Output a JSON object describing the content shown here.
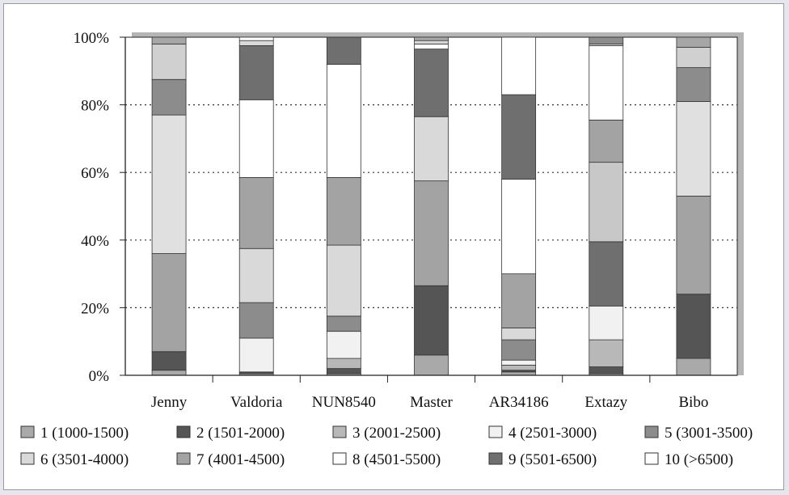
{
  "chart_data": {
    "type": "bar",
    "stacked": true,
    "normalized": true,
    "title": "",
    "xlabel": "",
    "ylabel": "",
    "ylim": [
      0,
      100
    ],
    "y_ticks": [
      "0%",
      "20%",
      "40%",
      "60%",
      "80%",
      "100%"
    ],
    "grid": "dotted horizontal lines at 20% intervals",
    "legend_position": "bottom",
    "categories": [
      "Jenny",
      "Valdoria",
      "NUN8540",
      "Master",
      "AR34186",
      "Extazy",
      "Bibo"
    ],
    "series": [
      {
        "name": "1 (1000-1500)",
        "color": "#a9a9a9",
        "values": [
          1.5,
          0.5,
          0.5,
          6,
          1,
          0.5,
          5
        ]
      },
      {
        "name": "2 (1501-2000)",
        "color": "#555555",
        "values": [
          5.5,
          0.5,
          1.5,
          20.5,
          0.5,
          2,
          19
        ]
      },
      {
        "name": "3 (2001-2500)",
        "color": "#b8b8b8",
        "values": [
          0,
          0,
          3,
          0,
          1.5,
          0,
          0
        ]
      },
      {
        "name": "4 (2501-3000)",
        "color": "#f1f1f1",
        "values": [
          0,
          10,
          8,
          0,
          1.5,
          8,
          0
        ]
      },
      {
        "name": "5 (3001-3500)",
        "color": "#8c8c8c",
        "values": [
          0,
          10.5,
          4.5,
          0,
          6,
          0,
          0
        ]
      },
      {
        "name": "6 (3501-4000)",
        "color": "#d9d9d9",
        "values": [
          0,
          16,
          21,
          0,
          3.5,
          10,
          0
        ]
      },
      {
        "name": "7 (4001-4500)",
        "color": "#a3a3a3",
        "values": [
          29,
          21,
          20,
          31,
          16,
          19,
          29
        ]
      },
      {
        "name": "8 (4501-5500)",
        "color": "#ffffff",
        "values": [
          0,
          0,
          0,
          0,
          28,
          0,
          0
        ]
      },
      {
        "name": "9 (5501-6500)",
        "color": "#6f6f6f",
        "values": [
          0,
          0,
          0,
          0,
          25,
          0,
          0
        ]
      },
      {
        "name": "10 (>6500)",
        "color": "#ffffff",
        "values": [
          0,
          0,
          0,
          0,
          0,
          0,
          0
        ]
      }
    ],
    "stacks": {
      "Jenny": [
        [
          1.5,
          "#a9a9a9"
        ],
        [
          5.5,
          "#555555"
        ],
        [
          29,
          "#a3a3a3"
        ],
        [
          41,
          "#e0e0e0"
        ],
        [
          10.5,
          "#8c8c8c"
        ],
        [
          10.5,
          "#d0d0d0"
        ],
        [
          2,
          "#a6a6a6"
        ]
      ],
      "Valdoria": [
        [
          0.5,
          "#a9a9a9"
        ],
        [
          0.5,
          "#555555"
        ],
        [
          10,
          "#f1f1f1"
        ],
        [
          10.5,
          "#8c8c8c"
        ],
        [
          16,
          "#d9d9d9"
        ],
        [
          21,
          "#a3a3a3"
        ],
        [
          23,
          "#ffffff"
        ],
        [
          16,
          "#6f6f6f"
        ],
        [
          1.5,
          "#d9d9d9"
        ],
        [
          1,
          "#ffffff"
        ]
      ],
      "NUN8540": [
        [
          0.5,
          "#a9a9a9"
        ],
        [
          1.5,
          "#555555"
        ],
        [
          3,
          "#b8b8b8"
        ],
        [
          8,
          "#f1f1f1"
        ],
        [
          4.5,
          "#8c8c8c"
        ],
        [
          21,
          "#d9d9d9"
        ],
        [
          20,
          "#a3a3a3"
        ],
        [
          33.5,
          "#ffffff"
        ],
        [
          8,
          "#6f6f6f"
        ]
      ],
      "Master": [
        [
          6,
          "#a9a9a9"
        ],
        [
          20.5,
          "#555555"
        ],
        [
          31,
          "#a3a3a3"
        ],
        [
          19,
          "#d9d9d9"
        ],
        [
          20,
          "#6f6f6f"
        ],
        [
          1.5,
          "#ffffff"
        ],
        [
          1,
          "#d9d9d9"
        ],
        [
          1,
          "#a9a9a9"
        ]
      ],
      "AR34186": [
        [
          1,
          "#a9a9a9"
        ],
        [
          0.5,
          "#555555"
        ],
        [
          1.5,
          "#b8b8b8"
        ],
        [
          1.5,
          "#f1f1f1"
        ],
        [
          6,
          "#8c8c8c"
        ],
        [
          3.5,
          "#d9d9d9"
        ],
        [
          16,
          "#a3a3a3"
        ],
        [
          28,
          "#ffffff"
        ],
        [
          25,
          "#6f6f6f"
        ],
        [
          17,
          "#ffffff"
        ]
      ],
      "Extazy": [
        [
          0.5,
          "#a9a9a9"
        ],
        [
          2,
          "#555555"
        ],
        [
          8,
          "#b8b8b8"
        ],
        [
          10,
          "#f1f1f1"
        ],
        [
          19,
          "#6f6f6f"
        ],
        [
          23.5,
          "#c8c8c8"
        ],
        [
          12.5,
          "#a3a3a3"
        ],
        [
          22,
          "#ffffff"
        ],
        [
          0.5,
          "#d9d9d9"
        ],
        [
          2,
          "#8c8c8c"
        ]
      ],
      "Bibo": [
        [
          5,
          "#a9a9a9"
        ],
        [
          19,
          "#555555"
        ],
        [
          29,
          "#a3a3a3"
        ],
        [
          28,
          "#e0e0e0"
        ],
        [
          10,
          "#8c8c8c"
        ],
        [
          6,
          "#d0d0d0"
        ],
        [
          3,
          "#a6a6a6"
        ]
      ]
    }
  }
}
